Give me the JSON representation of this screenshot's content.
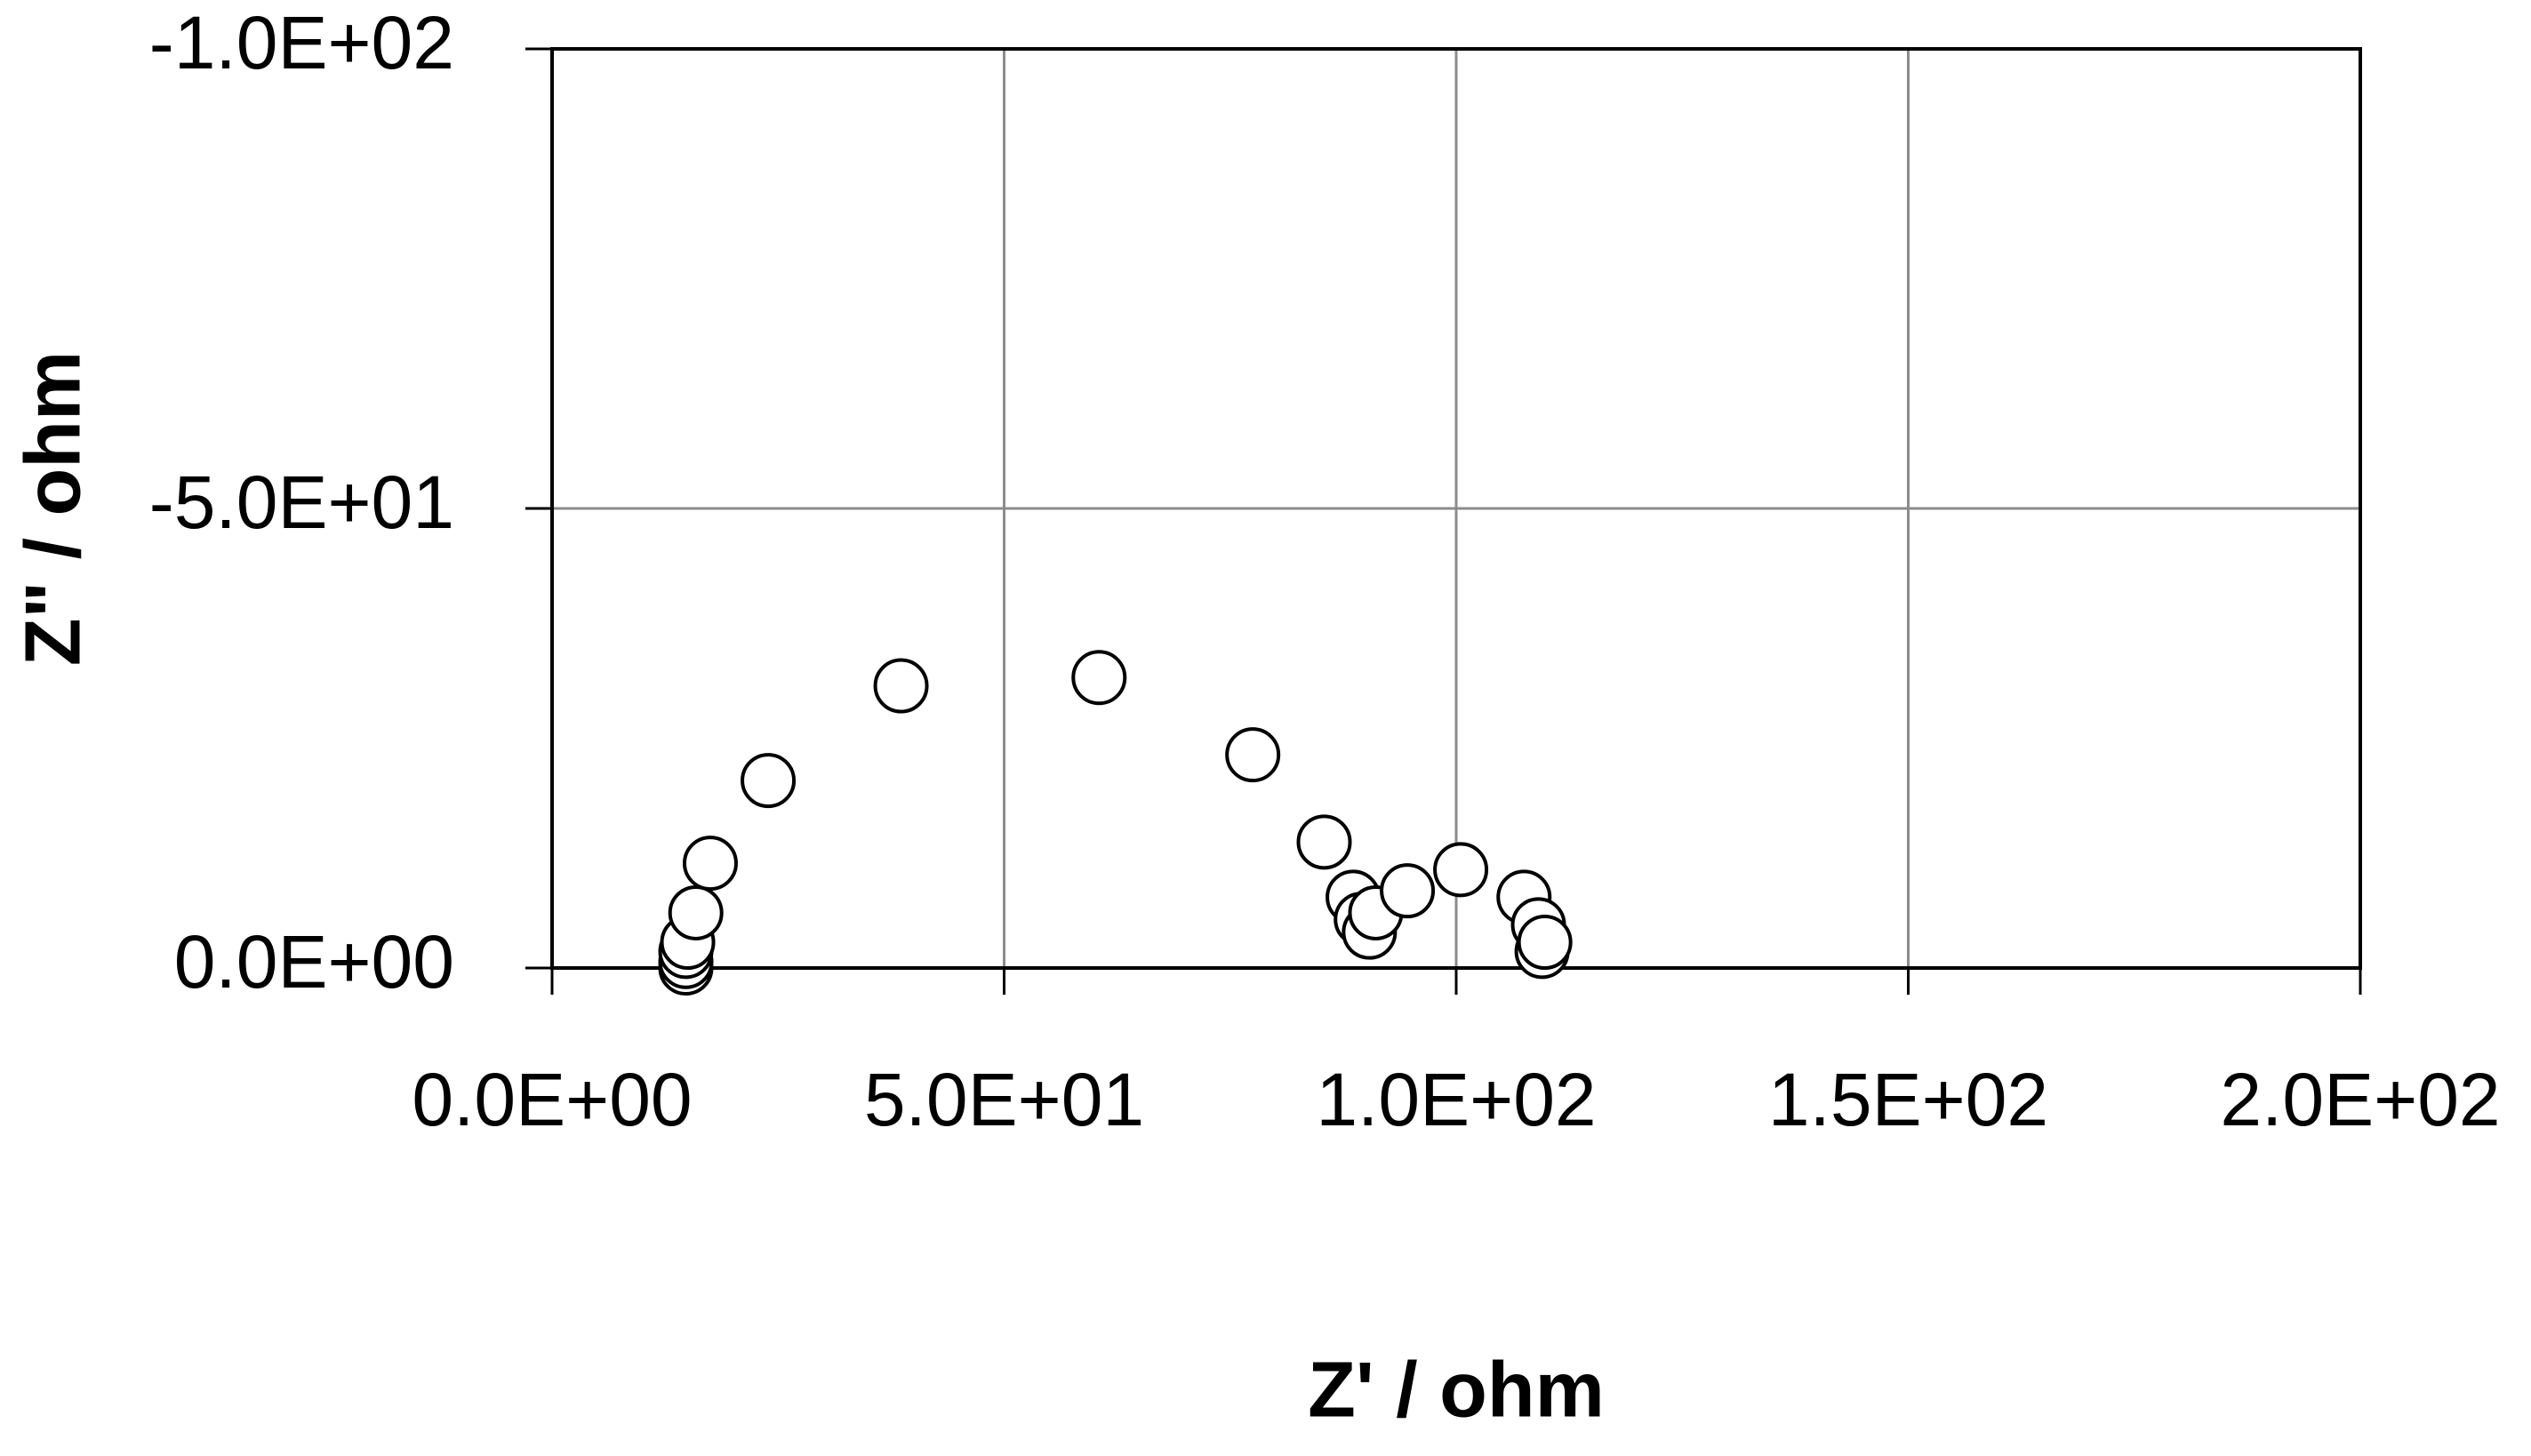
{
  "chart_data": {
    "type": "scatter",
    "x_label": "Z' / ohm",
    "y_label": "Z\" / ohm",
    "series": [
      {
        "marker": "circle",
        "color": "#ffffff",
        "edge_color": "#000000",
        "x": [
          14.8,
          14.8,
          14.8,
          15.0,
          15.9,
          17.5,
          23.9,
          38.6,
          60.5,
          77.5,
          85.4,
          88.6,
          89.5,
          90.4,
          91.1,
          94.6,
          100.5,
          107.5,
          109.1,
          109.5,
          109.8
        ],
        "values": [
          0,
          -0.7,
          -1.8,
          -2.8,
          -6.0,
          -11.4,
          -20.4,
          -30.7,
          -31.6,
          -23.2,
          -13.7,
          -7.7,
          -5.3,
          -3.9,
          -6.0,
          -8.4,
          -10.7,
          -7.7,
          -4.7,
          -1.8,
          -2.8
        ]
      }
    ],
    "xlim": [
      0,
      200
    ],
    "xticks": [
      {
        "value": 0,
        "label": "0.0E+00"
      },
      {
        "value": 50,
        "label": "5.0E+01"
      },
      {
        "value": 100,
        "label": "1.0E+02"
      },
      {
        "value": 150,
        "label": "1.5E+02"
      },
      {
        "value": 200,
        "label": "2.0E+02"
      }
    ],
    "ylim": [
      0,
      -100
    ],
    "yticks": [
      {
        "value": 0,
        "label": "0.0E+00"
      },
      {
        "value": -50,
        "label": "-5.0E+01"
      },
      {
        "value": -100,
        "label": "-1.0E+02"
      }
    ],
    "grid": true
  }
}
